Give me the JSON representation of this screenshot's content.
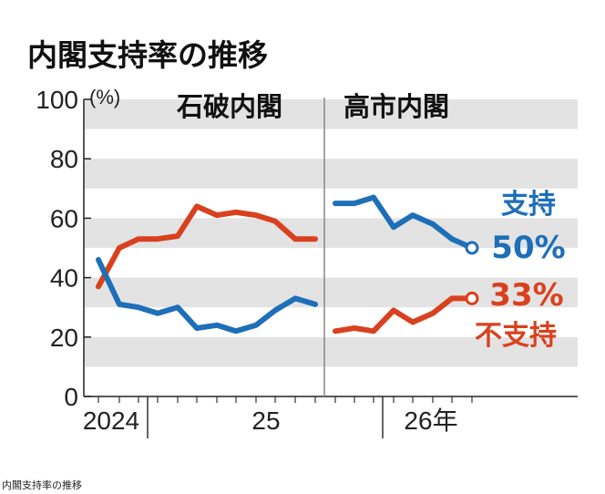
{
  "chart_data": {
    "type": "line",
    "title": "内閣支持率の推移",
    "unit_label": "(%)",
    "ylim": [
      0,
      100
    ],
    "yticks": [
      "0",
      "20",
      "40",
      "60",
      "80",
      "100"
    ],
    "xticks": [
      "2024",
      "25",
      "26年"
    ],
    "periods": [
      "石破内閣",
      "高市内閣"
    ],
    "colors": {
      "support": "#1d6fb8",
      "nonsupport": "#d9411e"
    },
    "segments": [
      {
        "cabinet": "石破内閣",
        "support": [
          46,
          31,
          30,
          28,
          30,
          23,
          24,
          22,
          24,
          29,
          33,
          31
        ],
        "nonsupport": [
          37,
          50,
          53,
          53,
          54,
          64,
          61,
          62,
          61,
          59,
          53,
          53
        ]
      },
      {
        "cabinet": "高市内閣",
        "support": [
          65,
          65,
          67,
          57,
          61,
          58,
          53,
          50
        ],
        "nonsupport": [
          22,
          23,
          22,
          29,
          25,
          28,
          33,
          33
        ]
      }
    ],
    "series_labels": {
      "support": {
        "name": "支持",
        "value": "50%"
      },
      "nonsupport": {
        "name": "不支持",
        "value": "33%"
      }
    }
  },
  "caption": "内閣支持率の推移"
}
